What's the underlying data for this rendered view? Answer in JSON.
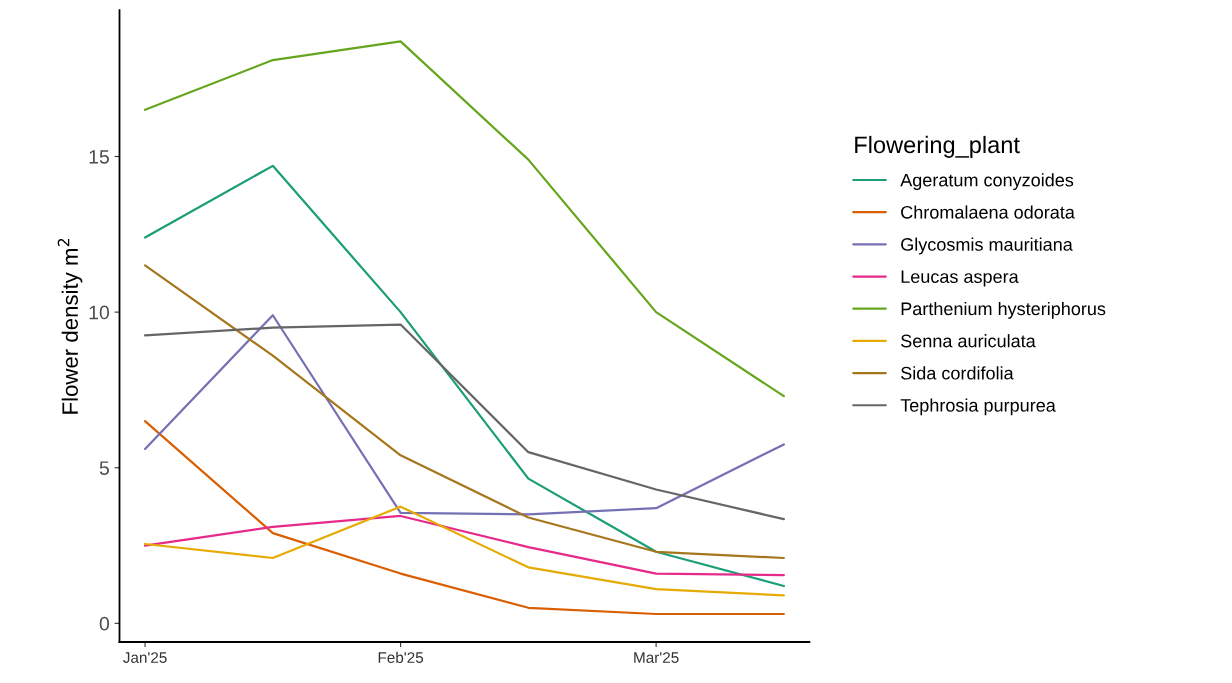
{
  "chart_data": {
    "type": "line",
    "ylabel": "Flower density m$^{2}$",
    "legend_title": "Flowering_plant",
    "legend": "right",
    "grid": false,
    "categories": [
      "Jan'25",
      null,
      "Feb'25",
      null,
      "Mar'25",
      null
    ],
    "ylim": [
      -0.6,
      19.7
    ],
    "yticks": [
      0,
      5,
      10,
      15
    ],
    "series": [
      {
        "name": "Ageratum conyzoides",
        "color": "#1b9e77",
        "values": [
          12.4,
          14.7,
          10.0,
          4.65,
          2.3,
          1.2
        ]
      },
      {
        "name": "Chromalaena odorata",
        "color": "#d95f02",
        "values": [
          6.5,
          2.9,
          1.6,
          0.5,
          0.3,
          0.3
        ]
      },
      {
        "name": "Glycosmis mauritiana",
        "color": "#7570b3",
        "values": [
          5.6,
          9.9,
          3.55,
          3.5,
          3.7,
          5.75
        ]
      },
      {
        "name": "Leucas aspera",
        "color": "#e7298a",
        "values": [
          2.5,
          3.1,
          3.45,
          2.45,
          1.6,
          1.55
        ]
      },
      {
        "name": "Parthenium hysteriphorus",
        "color": "#66a61e",
        "values": [
          16.5,
          18.1,
          18.7,
          14.9,
          10.0,
          7.3
        ]
      },
      {
        "name": "Senna auriculata",
        "color": "#e6ab02",
        "values": [
          2.55,
          2.1,
          3.75,
          1.8,
          1.1,
          0.9
        ]
      },
      {
        "name": "Sida cordifolia",
        "color": "#a6761d",
        "values": [
          11.5,
          8.6,
          5.4,
          3.4,
          2.3,
          2.1
        ]
      },
      {
        "name": "Tephrosia purpurea",
        "color": "#666666",
        "values": [
          9.25,
          9.5,
          9.6,
          5.5,
          4.3,
          3.35
        ]
      }
    ]
  }
}
